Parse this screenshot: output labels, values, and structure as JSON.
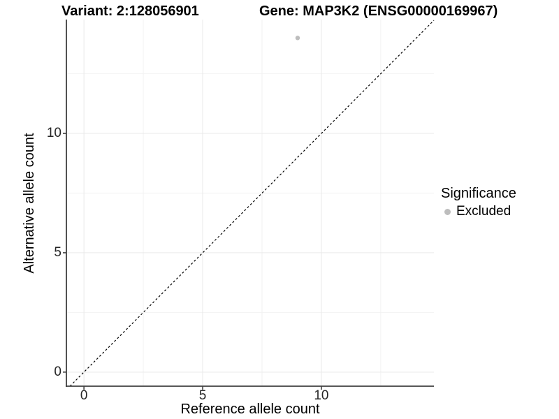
{
  "chart_data": {
    "type": "scatter",
    "title_left": "Variant: 2:128056901",
    "title_right": "Gene: MAP3K2 (ENSG00000169967)",
    "xlabel": "Reference allele count",
    "ylabel": "Alternative allele count",
    "xlim": [
      -0.74,
      14.74
    ],
    "ylim": [
      -0.59,
      14.77
    ],
    "xticks": [
      0,
      5,
      10
    ],
    "yticks": [
      0,
      5,
      10
    ],
    "xticks_minor": [
      2.5,
      7.5,
      12.5
    ],
    "yticks_minor": [
      2.5,
      7.5,
      12.5
    ],
    "grid": "major+minor",
    "points": [
      {
        "x": 9,
        "y": 14,
        "significance": "Excluded"
      }
    ],
    "abline": {
      "slope": 1,
      "intercept": 0,
      "style": "dashed",
      "color": "#000000"
    },
    "legend": {
      "title": "Significance",
      "position": "right",
      "items": [
        {
          "label": "Excluded",
          "color": "#bdbdbd",
          "marker": "circle"
        }
      ]
    },
    "colors": {
      "background": "#ffffff",
      "point": "#bdbdbd",
      "grid_major": "#e9e9e9",
      "grid_minor": "#f2f2f2",
      "axis_line": "#3f3f3f",
      "tick_mark": "#3f3f3f"
    }
  }
}
